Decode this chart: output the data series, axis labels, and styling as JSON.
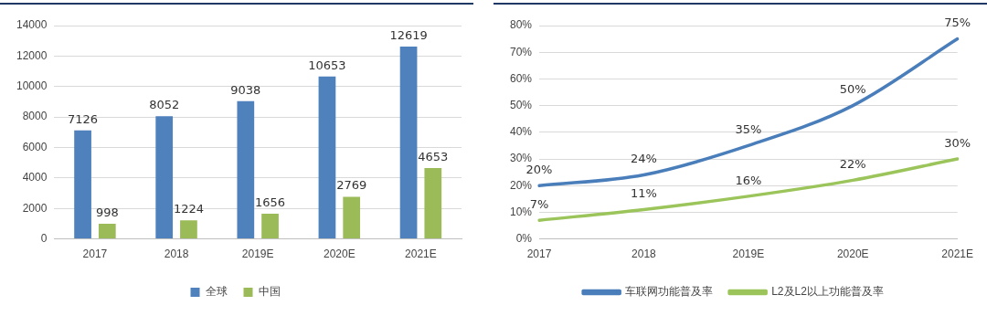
{
  "chart_data": [
    {
      "type": "bar",
      "categories": [
        "2017",
        "2018",
        "2019E",
        "2020E",
        "2021E"
      ],
      "series": [
        {
          "name": "全球",
          "color": "#4f81bd",
          "values": [
            7126,
            8052,
            9038,
            10653,
            12619
          ]
        },
        {
          "name": "中国",
          "color": "#9bbb59",
          "values": [
            998,
            1224,
            1656,
            2769,
            4653
          ]
        }
      ],
      "ylim": [
        0,
        14000
      ],
      "yticks": [
        0,
        2000,
        4000,
        6000,
        8000,
        10000,
        12000,
        14000
      ],
      "grid": "y",
      "legend": "bottom",
      "data_labels": true
    },
    {
      "type": "line",
      "categories": [
        "2017",
        "2018",
        "2019E",
        "2020E",
        "2021E"
      ],
      "series": [
        {
          "name": "车联网功能普及率",
          "color": "#4a7ebb",
          "values": [
            20,
            24,
            35,
            50,
            75
          ],
          "value_labels": [
            "20%",
            "24%",
            "35%",
            "50%",
            "75%"
          ]
        },
        {
          "name": "L2及L2以上功能普及率",
          "color": "#9bc55a",
          "values": [
            7,
            11,
            16,
            22,
            30
          ],
          "value_labels": [
            "7%",
            "11%",
            "16%",
            "22%",
            "30%"
          ]
        }
      ],
      "ylim": [
        0,
        80
      ],
      "yticks": [
        {
          "value": 0,
          "label": "0%"
        },
        {
          "value": 10,
          "label": "10%"
        },
        {
          "value": 20,
          "label": "20%"
        },
        {
          "value": 30,
          "label": "30%"
        },
        {
          "value": 40,
          "label": "40%"
        },
        {
          "value": 50,
          "label": "50%"
        },
        {
          "value": 60,
          "label": "60%"
        },
        {
          "value": 70,
          "label": "70%"
        },
        {
          "value": 80,
          "label": "80%"
        }
      ],
      "grid": "y",
      "legend": "bottom",
      "marker": "none",
      "line_style": "solid"
    }
  ]
}
